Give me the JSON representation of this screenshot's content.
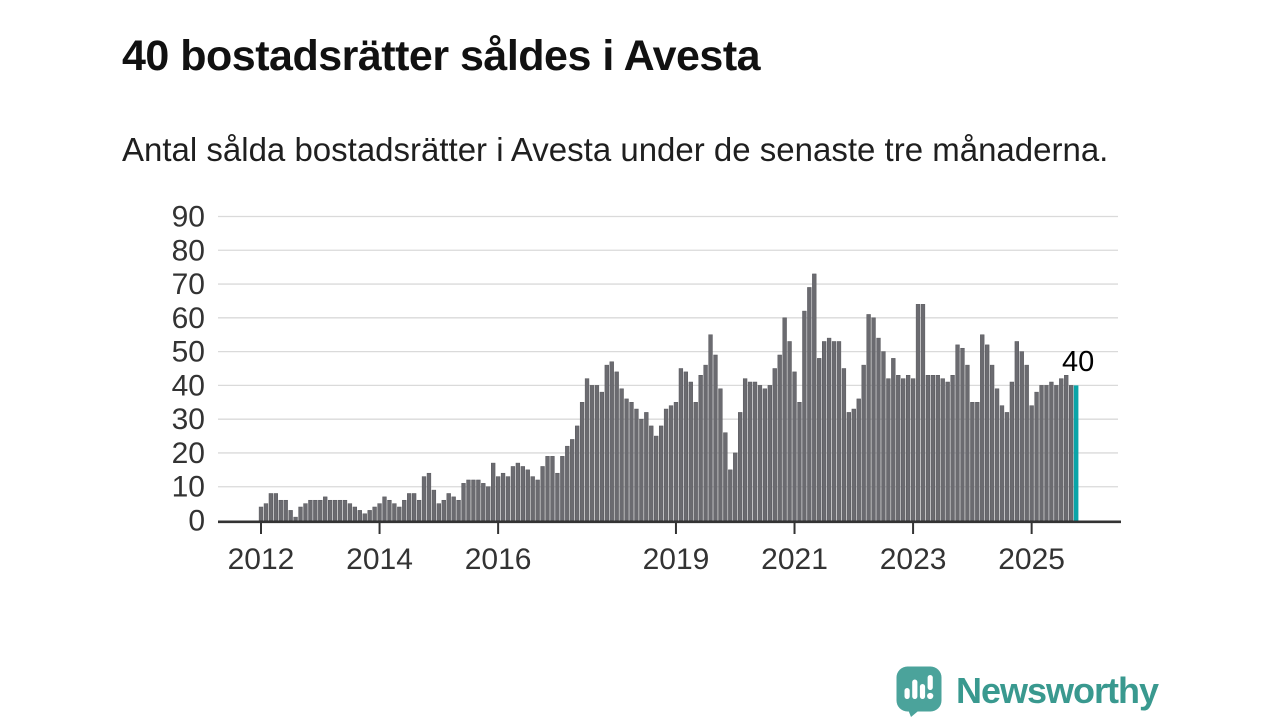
{
  "header": {
    "title": "40 bostadsrätter såldes i Avesta",
    "subtitle": "Antal sålda bostadsrätter i Avesta under de senaste tre månaderna."
  },
  "footer": {
    "brand": "Newsworthy"
  },
  "colors": {
    "bar": "#6b6b70",
    "bar_stroke": "#57575c",
    "highlight": "#0aa5a8",
    "grid": "#dadada",
    "axis": "#333333",
    "axis_text": "#333333",
    "annotation_text": "#000000",
    "brand_text": "#39998f",
    "badge": "#4ba39b"
  },
  "chart_data": {
    "type": "bar",
    "title": "40 bostadsrätter såldes i Avesta",
    "subtitle": "Antal sålda bostadsrätter i Avesta under de senaste tre månaderna.",
    "x_start": "2012-01",
    "x_end": "2025-10",
    "frequency": "monthly",
    "x_tick_years": [
      2012,
      2014,
      2016,
      2019,
      2021,
      2023,
      2025
    ],
    "y_ticks": [
      0,
      10,
      20,
      30,
      40,
      50,
      60,
      70,
      80,
      90
    ],
    "ylim": [
      0,
      90
    ],
    "grid": true,
    "values": [
      4,
      5,
      8,
      8,
      6,
      6,
      3,
      1,
      4,
      5,
      6,
      6,
      6,
      7,
      6,
      6,
      6,
      6,
      5,
      4,
      3,
      2,
      3,
      4,
      5,
      7,
      6,
      5,
      4,
      6,
      8,
      8,
      6,
      13,
      14,
      9,
      5,
      6,
      8,
      7,
      6,
      11,
      12,
      12,
      12,
      11,
      10,
      17,
      13,
      14,
      13,
      16,
      17,
      16,
      15,
      13,
      12,
      16,
      19,
      19,
      14,
      19,
      22,
      24,
      28,
      35,
      42,
      40,
      40,
      38,
      46,
      47,
      44,
      39,
      36,
      35,
      33,
      30,
      32,
      28,
      25,
      28,
      33,
      34,
      35,
      45,
      44,
      41,
      35,
      43,
      46,
      55,
      49,
      39,
      26,
      15,
      20,
      32,
      42,
      41,
      41,
      40,
      39,
      40,
      45,
      49,
      60,
      53,
      44,
      35,
      62,
      69,
      73,
      48,
      53,
      54,
      53,
      53,
      45,
      32,
      33,
      36,
      46,
      61,
      60,
      54,
      50,
      42,
      48,
      43,
      42,
      43,
      42,
      64,
      64,
      43,
      43,
      43,
      42,
      41,
      43,
      52,
      51,
      46,
      35,
      35,
      55,
      52,
      46,
      39,
      34,
      32,
      41,
      53,
      50,
      46,
      34,
      38,
      40,
      40,
      41,
      40,
      42,
      43,
      40,
      40
    ],
    "highlight_index": 165,
    "annotation": {
      "text": "40",
      "value": 40
    }
  }
}
